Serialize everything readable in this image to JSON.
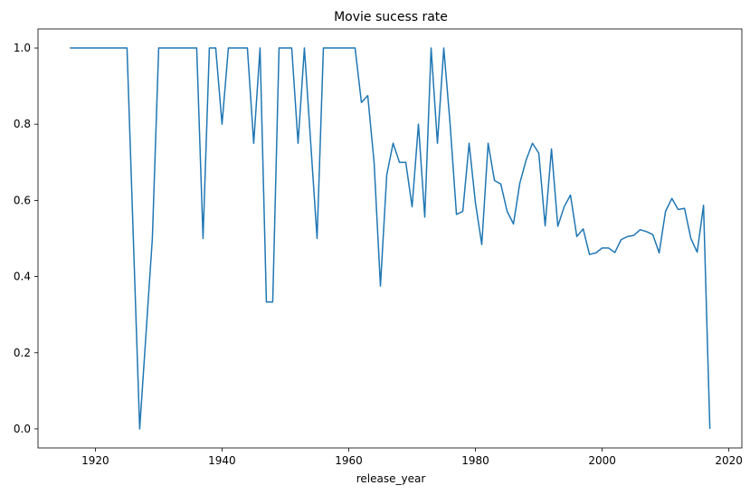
{
  "chart_data": {
    "type": "line",
    "title": "Movie sucess rate",
    "xlabel": "release_year",
    "ylabel": "",
    "xlim": [
      1910.95,
      2022.05
    ],
    "ylim": [
      -0.05,
      1.05
    ],
    "grid": false,
    "x_ticks": [
      "1920",
      "1940",
      "1960",
      "1980",
      "2000",
      "2020"
    ],
    "y_ticks": [
      "0.0",
      "0.2",
      "0.4",
      "0.6",
      "0.8",
      "1.0"
    ],
    "series": [
      {
        "color": "#1f77b4",
        "x": [
          1916,
          1917,
          1918,
          1919,
          1920,
          1921,
          1922,
          1923,
          1924,
          1925,
          1926,
          1927,
          1928,
          1929,
          1930,
          1931,
          1932,
          1933,
          1934,
          1935,
          1936,
          1937,
          1938,
          1939,
          1940,
          1941,
          1942,
          1943,
          1944,
          1945,
          1946,
          1947,
          1948,
          1949,
          1950,
          1951,
          1952,
          1953,
          1954,
          1955,
          1956,
          1957,
          1958,
          1959,
          1960,
          1961,
          1962,
          1963,
          1964,
          1965,
          1966,
          1967,
          1968,
          1969,
          1970,
          1971,
          1972,
          1973,
          1974,
          1975,
          1976,
          1977,
          1978,
          1979,
          1980,
          1981,
          1982,
          1983,
          1984,
          1985,
          1986,
          1987,
          1988,
          1989,
          1990,
          1991,
          1992,
          1993,
          1994,
          1995,
          1996,
          1997,
          1998,
          1999,
          2000,
          2001,
          2002,
          2003,
          2004,
          2005,
          2006,
          2007,
          2008,
          2009,
          2010,
          2011,
          2012,
          2013,
          2014,
          2015,
          2016,
          2017
        ],
        "y": [
          1.0,
          1.0,
          1.0,
          1.0,
          1.0,
          1.0,
          1.0,
          1.0,
          1.0,
          1.0,
          0.5,
          0.0,
          0.25,
          0.5,
          1.0,
          1.0,
          1.0,
          1.0,
          1.0,
          1.0,
          1.0,
          0.5,
          1.0,
          1.0,
          0.8,
          1.0,
          1.0,
          1.0,
          1.0,
          0.75,
          1.0,
          0.333,
          0.333,
          1.0,
          1.0,
          1.0,
          0.75,
          1.0,
          0.75,
          0.5,
          1.0,
          1.0,
          1.0,
          1.0,
          1.0,
          1.0,
          0.857,
          0.875,
          0.7,
          0.375,
          0.667,
          0.75,
          0.7,
          0.7,
          0.583,
          0.8,
          0.556,
          1.0,
          0.75,
          1.0,
          0.8,
          0.563,
          0.571,
          0.75,
          0.593,
          0.484,
          0.75,
          0.652,
          0.643,
          0.571,
          0.538,
          0.645,
          0.706,
          0.75,
          0.724,
          0.533,
          0.735,
          0.532,
          0.583,
          0.614,
          0.505,
          0.525,
          0.458,
          0.462,
          0.475,
          0.475,
          0.463,
          0.497,
          0.505,
          0.508,
          0.523,
          0.518,
          0.51,
          0.462,
          0.571,
          0.605,
          0.576,
          0.579,
          0.5,
          0.464,
          0.587,
          0.0
        ]
      }
    ]
  }
}
